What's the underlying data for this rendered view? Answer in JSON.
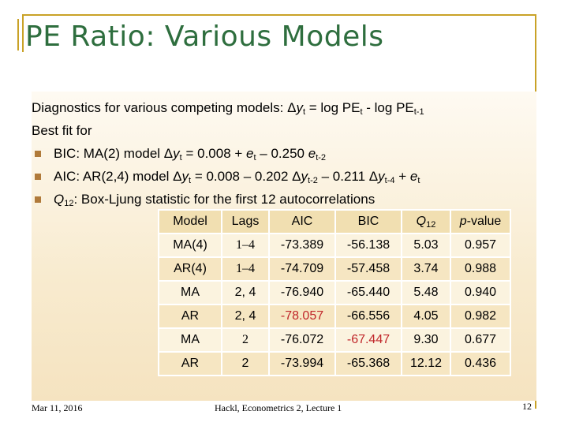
{
  "slide": {
    "title": "PE Ratio: Various Models",
    "intro": {
      "pre": "Diagnostics for various competing models: Δ",
      "y": "y",
      "t1": "t",
      "mid": " = log PE",
      "t2": "t",
      "mid2": " - log PE",
      "sub3": "t-1"
    },
    "best_fit": "Best fit for",
    "bullets": [
      {
        "a": "BIC: MA(2) model Δ",
        "y": "y",
        "sub1": "t",
        "b": " = 0.008 + ",
        "e": "e",
        "sub2": "t",
        "c": " – 0.250 ",
        "e2": "e",
        "sub3": "t-2"
      },
      {
        "a": "AIC: AR(2,4) model Δ",
        "y": "y",
        "sub1": "t",
        "b": " = 0.008 – 0.202 Δ",
        "y2": "y",
        "sub2": "t-2",
        "c": " – 0.211 Δ",
        "y3": "y",
        "sub3": "t-4",
        "d": " + ",
        "e": "e",
        "sub4": "t"
      },
      {
        "q": "Q",
        "sub": "12",
        "text": ": Box-Ljung statistic for the first 12 autocorrelations"
      }
    ]
  },
  "table": {
    "headers": [
      "Model",
      "Lags",
      "AIC",
      "BIC",
      "Q",
      "p-value"
    ],
    "q_sub": "12",
    "rows": [
      [
        "MA(4)",
        "1–4",
        "-73.389",
        "-56.138",
        "5.03",
        "0.957"
      ],
      [
        "AR(4)",
        "1–4",
        "-74.709",
        "-57.458",
        "3.74",
        "0.988"
      ],
      [
        "MA",
        "2, 4",
        "-76.940",
        "-65.440",
        "5.48",
        "0.940"
      ],
      [
        "AR",
        "2, 4",
        "-78.057",
        "-66.556",
        "4.05",
        "0.982"
      ],
      [
        "MA",
        "2",
        "-76.072",
        "-67.447",
        "9.30",
        "0.677"
      ],
      [
        "AR",
        "2",
        "-73.994",
        "-65.368",
        "12.12",
        "0.436"
      ]
    ],
    "highlight_color": "#c0262a"
  },
  "footer": {
    "date": "Mar 11, 2016",
    "center": "Hackl, Econometrics 2, Lecture 1",
    "page": "12"
  }
}
